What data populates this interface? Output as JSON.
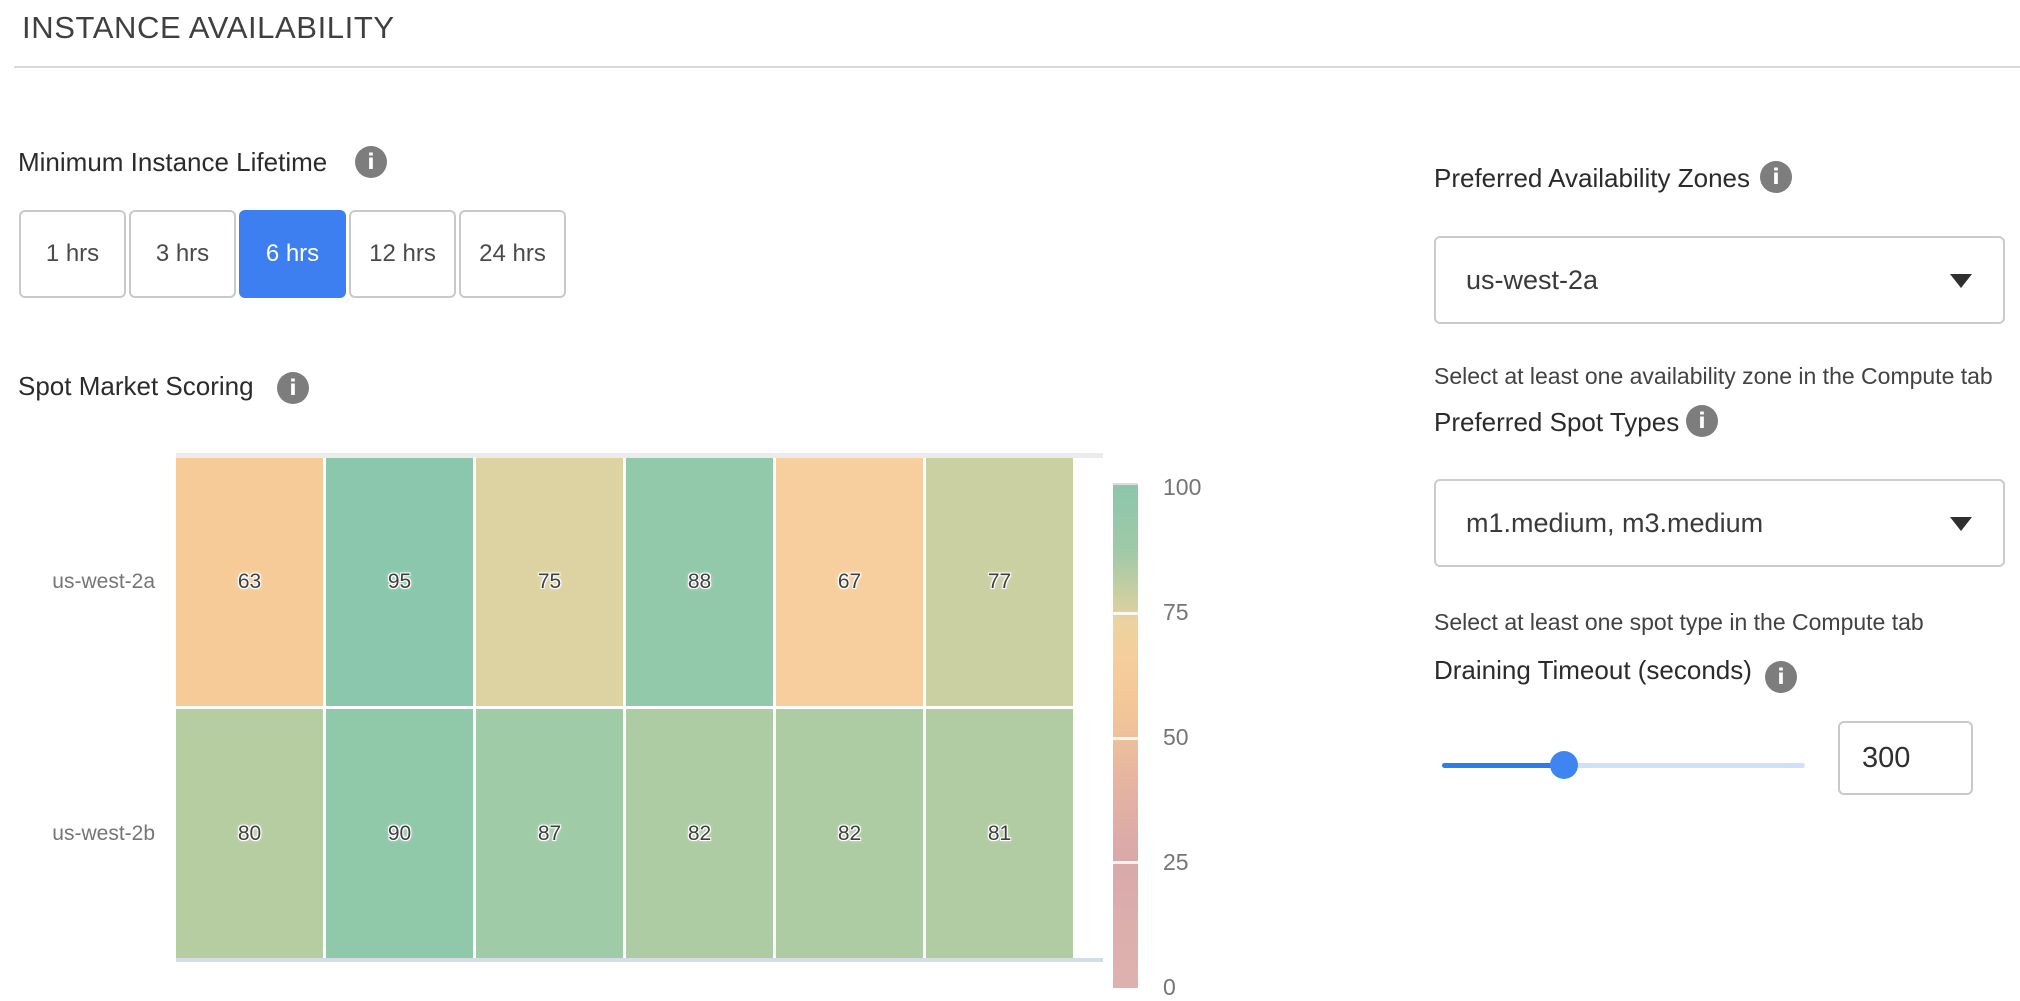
{
  "page": {
    "title": "INSTANCE AVAILABILITY"
  },
  "colors": {
    "accent_blue": "#3d7ff0",
    "slider_fill_blue": "#2e7bed",
    "slider_rest_blue": "#cfe0f9",
    "info_icon_gray": "#7d7d7d",
    "border_gray": "#c9c9c9"
  },
  "lifetime": {
    "label": "Minimum Instance Lifetime",
    "info_icon": "info-icon",
    "options": [
      {
        "label": "1 hrs",
        "selected": false
      },
      {
        "label": "3 hrs",
        "selected": false
      },
      {
        "label": "6 hrs",
        "selected": true
      },
      {
        "label": "12 hrs",
        "selected": false
      },
      {
        "label": "24 hrs",
        "selected": false
      }
    ]
  },
  "scoring": {
    "label": "Spot Market Scoring",
    "info_icon": "info-icon"
  },
  "chart_data": {
    "type": "heatmap",
    "title": "Spot Market Scoring",
    "rows": [
      "us-west-2a",
      "us-west-2b"
    ],
    "values": [
      [
        63,
        95,
        75,
        88,
        67,
        77
      ],
      [
        80,
        90,
        87,
        82,
        82,
        81
      ]
    ],
    "cell_colors": [
      [
        "#f6cb98",
        "#8bc7ad",
        "#dcd2a2",
        "#93c9ab",
        "#f7cf9e",
        "#cbd0a3"
      ],
      [
        "#b6cda2",
        "#90c8aa",
        "#a0cba7",
        "#adcca3",
        "#adcca3",
        "#b1cca2"
      ]
    ],
    "colorbar": {
      "ticks": [
        100,
        75,
        50,
        25,
        0
      ],
      "range": [
        0,
        100
      ],
      "top_color": "#8dc6ab",
      "mid_color": "#f5c898",
      "bottom_color": "#dfb1ae"
    },
    "grid": false,
    "legend_position": "right"
  },
  "availability_zones": {
    "label": "Preferred Availability Zones",
    "info_icon": "info-icon",
    "value": "us-west-2a",
    "helper": "Select at least one availability zone in the Compute tab"
  },
  "spot_types": {
    "label": "Preferred Spot Types",
    "info_icon": "info-icon",
    "value": "m1.medium, m3.medium",
    "helper": "Select at least one spot type in the Compute tab"
  },
  "draining": {
    "label": "Draining Timeout (seconds)",
    "info_icon": "info-icon",
    "value": "300",
    "slider_percent": 33.6
  }
}
